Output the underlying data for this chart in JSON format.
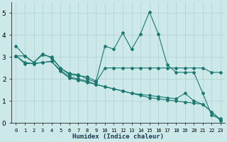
{
  "bg_color": "#cce8e8",
  "grid_color": "#b0d0d0",
  "line_color": "#1a7870",
  "xlabel": "Humidex (Indice chaleur)",
  "ylim": [
    0,
    5.5
  ],
  "xlim": [
    -0.5,
    23.5
  ],
  "yticks": [
    0,
    1,
    2,
    3,
    4,
    5
  ],
  "xticks": [
    0,
    1,
    2,
    3,
    4,
    5,
    6,
    7,
    8,
    9,
    10,
    11,
    12,
    13,
    14,
    15,
    16,
    17,
    18,
    19,
    20,
    21,
    22,
    23
  ],
  "series": [
    {
      "x": [
        0,
        1,
        2,
        3,
        4,
        5,
        6,
        7,
        8,
        9,
        10,
        11,
        12,
        13,
        14,
        15,
        16,
        17,
        18,
        19,
        20,
        21,
        22,
        23
      ],
      "y": [
        3.5,
        3.05,
        2.75,
        3.1,
        3.0,
        2.5,
        2.2,
        2.15,
        2.1,
        1.9,
        3.5,
        3.35,
        4.1,
        3.35,
        4.05,
        5.05,
        4.05,
        2.65,
        2.3,
        2.3,
        2.3,
        1.35,
        0.35,
        0.2
      ]
    },
    {
      "x": [
        0,
        1,
        2,
        3,
        4,
        5,
        6,
        7,
        8,
        9,
        10,
        11,
        12,
        13,
        14,
        15,
        16,
        17,
        18,
        19,
        20,
        21,
        22,
        23
      ],
      "y": [
        3.05,
        3.05,
        2.75,
        3.15,
        2.95,
        2.5,
        2.25,
        2.2,
        2.0,
        1.85,
        2.5,
        2.5,
        2.5,
        2.5,
        2.5,
        2.5,
        2.5,
        2.5,
        2.5,
        2.5,
        2.5,
        2.5,
        2.3,
        2.3
      ]
    },
    {
      "x": [
        0,
        1,
        2,
        3,
        4,
        5,
        6,
        7,
        8,
        9,
        10,
        11,
        12,
        13,
        14,
        15,
        16,
        17,
        18,
        19,
        20,
        21,
        22,
        23
      ],
      "y": [
        3.05,
        2.75,
        2.7,
        2.75,
        2.8,
        2.4,
        2.1,
        2.0,
        1.9,
        1.75,
        1.65,
        1.55,
        1.45,
        1.35,
        1.3,
        1.25,
        1.2,
        1.15,
        1.1,
        1.35,
        1.0,
        0.85,
        0.5,
        0.15
      ]
    },
    {
      "x": [
        0,
        1,
        2,
        3,
        4,
        5,
        6,
        7,
        8,
        9,
        10,
        11,
        12,
        13,
        14,
        15,
        16,
        17,
        18,
        19,
        20,
        21,
        22,
        23
      ],
      "y": [
        3.05,
        2.7,
        2.7,
        2.75,
        2.8,
        2.35,
        2.05,
        1.95,
        1.85,
        1.75,
        1.65,
        1.55,
        1.45,
        1.35,
        1.25,
        1.15,
        1.1,
        1.05,
        1.0,
        0.95,
        0.9,
        0.85,
        0.5,
        0.1
      ]
    }
  ]
}
